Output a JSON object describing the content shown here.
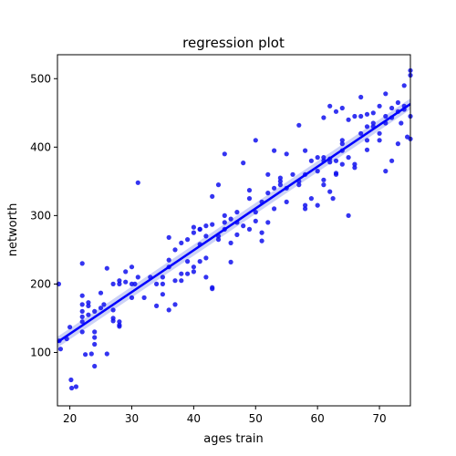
{
  "chart_data": {
    "type": "scatter",
    "title": "regression plot",
    "xlabel": "ages train",
    "ylabel": "networth",
    "xlim": [
      18,
      75
    ],
    "ylim": [
      22,
      535
    ],
    "xticks": [
      20,
      30,
      40,
      50,
      60,
      70
    ],
    "yticks": [
      100,
      200,
      300,
      400,
      500
    ],
    "grid": false,
    "colors": {
      "points": "#1010ee",
      "line": "#0000ff",
      "ci_band": "#aab4ee"
    },
    "regression": {
      "x": [
        18,
        75
      ],
      "y": [
        115,
        463
      ],
      "ci_halfwidth": 8
    },
    "points": [
      [
        18.2,
        200
      ],
      [
        18.3,
        117
      ],
      [
        18.5,
        105
      ],
      [
        19.5,
        120
      ],
      [
        20,
        137
      ],
      [
        20.2,
        60
      ],
      [
        20.3,
        48
      ],
      [
        21,
        50
      ],
      [
        22,
        160
      ],
      [
        22,
        145
      ],
      [
        22,
        183
      ],
      [
        22,
        230
      ],
      [
        22,
        170
      ],
      [
        22,
        152
      ],
      [
        22,
        130
      ],
      [
        22.5,
        97
      ],
      [
        23,
        168
      ],
      [
        23,
        155
      ],
      [
        23,
        173
      ],
      [
        23.5,
        98
      ],
      [
        24,
        160
      ],
      [
        24,
        130
      ],
      [
        24,
        122
      ],
      [
        24,
        112
      ],
      [
        24,
        80
      ],
      [
        25,
        165
      ],
      [
        25,
        187
      ],
      [
        25.5,
        170
      ],
      [
        26,
        223
      ],
      [
        26,
        98
      ],
      [
        27,
        150
      ],
      [
        27,
        162
      ],
      [
        27,
        146
      ],
      [
        27,
        200
      ],
      [
        28,
        145
      ],
      [
        28,
        138
      ],
      [
        28,
        140
      ],
      [
        28,
        205
      ],
      [
        28,
        200
      ],
      [
        29,
        218
      ],
      [
        29,
        203
      ],
      [
        30,
        200
      ],
      [
        30,
        180
      ],
      [
        30,
        225
      ],
      [
        30.5,
        200
      ],
      [
        31,
        348
      ],
      [
        31,
        210
      ],
      [
        32,
        180
      ],
      [
        33,
        210
      ],
      [
        34,
        200
      ],
      [
        34,
        168
      ],
      [
        35,
        200
      ],
      [
        35,
        210
      ],
      [
        35,
        185
      ],
      [
        36,
        268
      ],
      [
        36,
        235
      ],
      [
        36,
        225
      ],
      [
        36,
        162
      ],
      [
        37,
        170
      ],
      [
        37,
        250
      ],
      [
        37,
        205
      ],
      [
        38,
        215
      ],
      [
        38,
        205
      ],
      [
        38,
        260
      ],
      [
        39,
        265
      ],
      [
        39,
        233
      ],
      [
        39,
        215
      ],
      [
        40,
        283
      ],
      [
        40,
        275
      ],
      [
        40,
        225
      ],
      [
        40,
        218
      ],
      [
        41,
        280
      ],
      [
        41,
        280
      ],
      [
        41,
        258
      ],
      [
        41,
        233
      ],
      [
        42,
        285
      ],
      [
        42,
        270
      ],
      [
        42,
        238
      ],
      [
        42,
        210
      ],
      [
        43,
        328
      ],
      [
        43,
        287
      ],
      [
        43,
        195
      ],
      [
        43,
        193
      ],
      [
        44,
        270
      ],
      [
        44,
        265
      ],
      [
        44,
        345
      ],
      [
        45,
        390
      ],
      [
        45,
        300
      ],
      [
        45,
        290
      ],
      [
        45,
        280
      ],
      [
        46,
        295
      ],
      [
        46,
        260
      ],
      [
        46,
        232
      ],
      [
        47,
        305
      ],
      [
        47,
        272
      ],
      [
        47,
        290
      ],
      [
        48,
        377
      ],
      [
        48,
        285
      ],
      [
        49,
        325
      ],
      [
        49,
        337
      ],
      [
        49,
        280
      ],
      [
        50,
        410
      ],
      [
        50,
        305
      ],
      [
        50,
        292
      ],
      [
        51,
        320
      ],
      [
        51,
        263
      ],
      [
        51,
        275
      ],
      [
        52,
        360
      ],
      [
        52,
        333
      ],
      [
        52,
        290
      ],
      [
        53,
        395
      ],
      [
        53,
        340
      ],
      [
        53,
        310
      ],
      [
        54,
        355
      ],
      [
        54,
        350
      ],
      [
        54,
        345
      ],
      [
        55,
        320
      ],
      [
        55,
        340
      ],
      [
        55,
        390
      ],
      [
        56,
        360
      ],
      [
        57,
        432
      ],
      [
        57,
        350
      ],
      [
        57,
        345
      ],
      [
        58,
        395
      ],
      [
        58,
        310
      ],
      [
        58,
        315
      ],
      [
        58,
        360
      ],
      [
        59,
        325
      ],
      [
        59,
        380
      ],
      [
        60,
        385
      ],
      [
        60,
        365
      ],
      [
        60,
        315
      ],
      [
        61,
        443
      ],
      [
        61,
        385
      ],
      [
        61,
        380
      ],
      [
        61,
        352
      ],
      [
        61,
        345
      ],
      [
        62,
        378
      ],
      [
        62,
        383
      ],
      [
        62,
        335
      ],
      [
        62,
        460
      ],
      [
        62.5,
        325
      ],
      [
        63,
        360
      ],
      [
        63,
        452
      ],
      [
        63,
        380
      ],
      [
        63,
        362
      ],
      [
        64,
        457
      ],
      [
        64,
        410
      ],
      [
        64,
        405
      ],
      [
        64,
        375
      ],
      [
        64,
        395
      ],
      [
        65,
        440
      ],
      [
        65,
        300
      ],
      [
        65,
        385
      ],
      [
        66,
        370
      ],
      [
        66,
        375
      ],
      [
        66,
        445
      ],
      [
        67,
        473
      ],
      [
        67,
        445
      ],
      [
        67,
        420
      ],
      [
        68,
        448
      ],
      [
        68,
        430
      ],
      [
        68,
        410
      ],
      [
        68,
        396
      ],
      [
        69,
        450
      ],
      [
        69,
        435
      ],
      [
        69,
        430
      ],
      [
        70,
        460
      ],
      [
        70,
        420
      ],
      [
        70,
        410
      ],
      [
        71,
        478
      ],
      [
        71,
        445
      ],
      [
        71,
        435
      ],
      [
        71,
        365
      ],
      [
        72,
        457
      ],
      [
        72,
        443
      ],
      [
        72,
        380
      ],
      [
        73,
        465
      ],
      [
        73,
        452
      ],
      [
        73,
        405
      ],
      [
        73.5,
        435
      ],
      [
        74,
        490
      ],
      [
        74,
        460
      ],
      [
        74,
        455
      ],
      [
        74.5,
        415
      ],
      [
        75,
        512
      ],
      [
        75,
        505
      ],
      [
        75,
        445
      ],
      [
        75,
        412
      ]
    ]
  }
}
